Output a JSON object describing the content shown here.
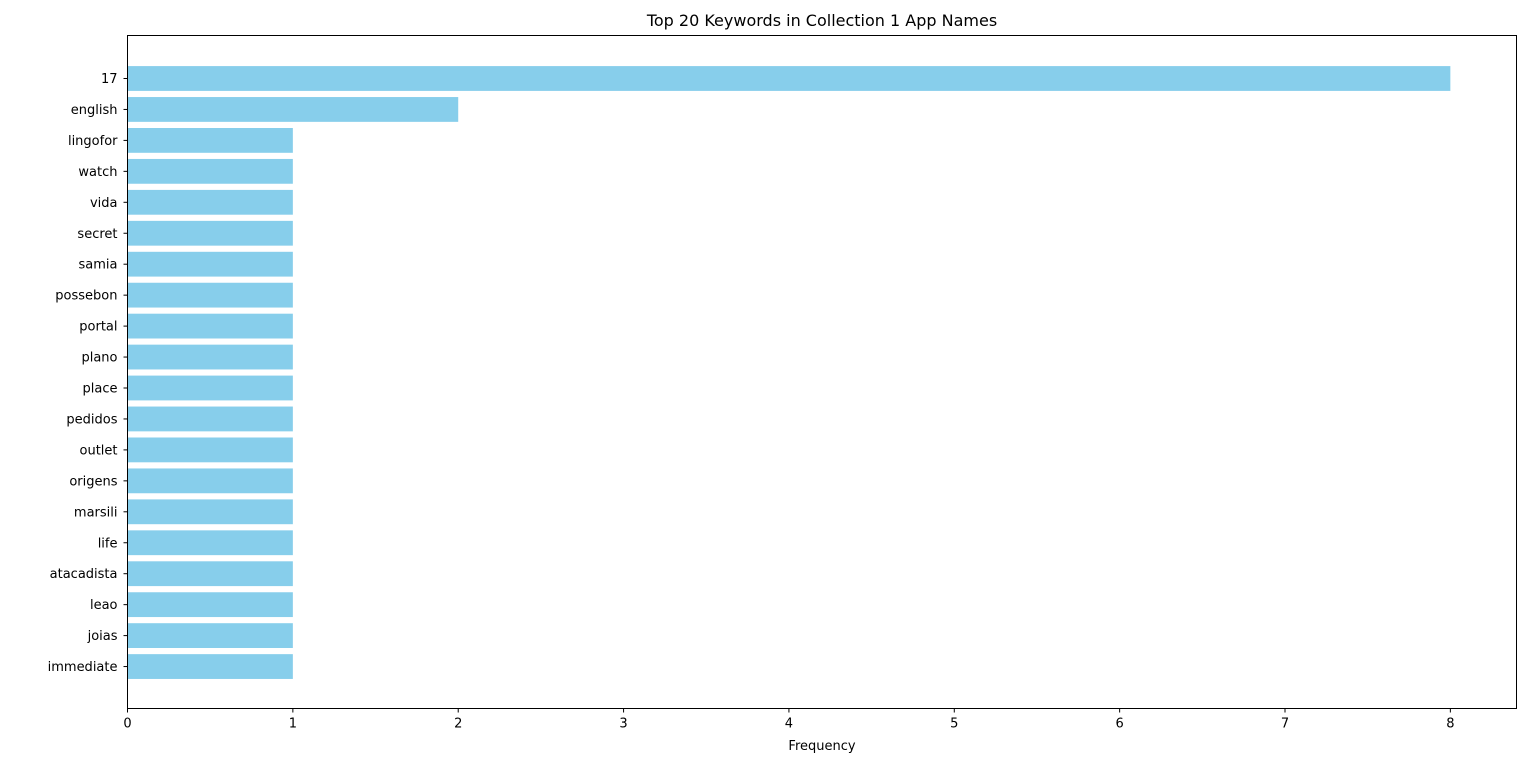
{
  "chart_data": {
    "type": "bar",
    "orientation": "horizontal",
    "title": "Top 20 Keywords in Collection 1 App Names",
    "xlabel": "Frequency",
    "ylabel": "",
    "xlim": [
      0,
      8.4
    ],
    "xticks": [
      0,
      1,
      2,
      3,
      4,
      5,
      6,
      7,
      8
    ],
    "grid": false,
    "bar_color": "#87ceeb",
    "categories": [
      "17",
      "english",
      "lingofor",
      "watch",
      "vida",
      "secret",
      "samia",
      "possebon",
      "portal",
      "plano",
      "place",
      "pedidos",
      "outlet",
      "origens",
      "marsili",
      "life",
      "atacadista",
      "leao",
      "joias",
      "immediate"
    ],
    "values": [
      8,
      2,
      1,
      1,
      1,
      1,
      1,
      1,
      1,
      1,
      1,
      1,
      1,
      1,
      1,
      1,
      1,
      1,
      1,
      1
    ]
  }
}
